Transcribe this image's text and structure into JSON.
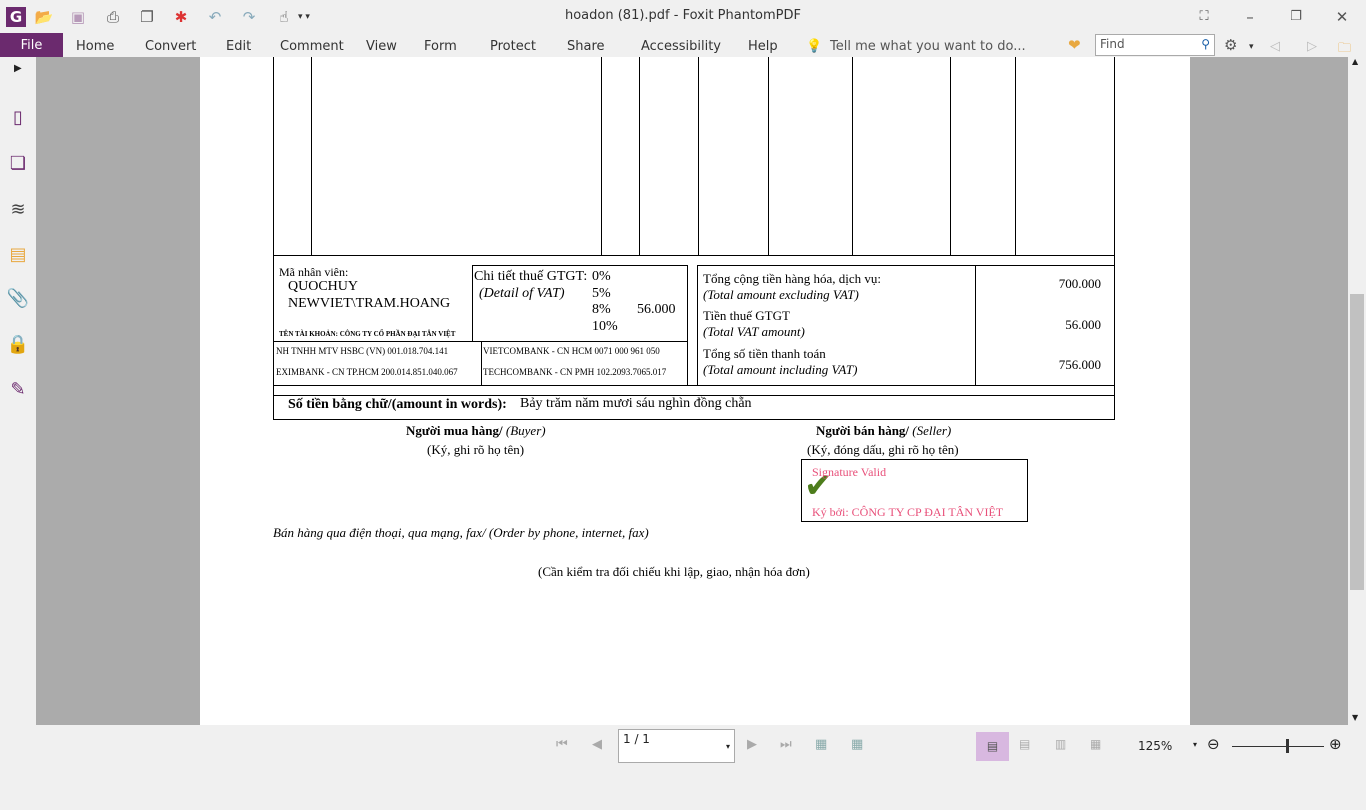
{
  "window": {
    "title": "hoadon (81).pdf - Foxit PhantomPDF"
  },
  "menu": {
    "file": "File",
    "tabs": [
      "Home",
      "Convert",
      "Edit",
      "Comment",
      "View",
      "Form",
      "Protect",
      "Share",
      "Accessibility",
      "Help"
    ],
    "tell_me": "Tell me what you want to do...",
    "find_placeholder": "Find"
  },
  "invoice": {
    "employee_label": "Mã nhân viên:",
    "employee_1": "QUOCHUY",
    "employee_2": "NEWVIET\\TRAM.HOANG",
    "account_name": "TÊN TÀI KHOẢN: CÔNG TY CỔ PHẦN ĐẠI TÂN VIỆT",
    "vat_label": "Chi tiết thuế GTGT:",
    "vat_label_en": "(Detail of VAT)",
    "vat_rates": [
      "0%",
      "5%",
      "8%",
      "10%"
    ],
    "vat_8_amount": "56.000",
    "banks": [
      "NH TNHH MTV HSBC (VN)  001.018.704.141",
      "EXIMBANK - CN TP.HCM  200.014.851.040.067",
      "VIETCOMBANK - CN HCM  0071 000 961 050",
      "TECHCOMBANK - CN PMH  102.2093.7065.017"
    ],
    "total_excl_label": "Tổng cộng tiền hàng hóa, dịch vụ:",
    "total_excl_label_en": "(Total amount excluding VAT)",
    "total_excl": "700.000",
    "vat_amount_label": "Tiền thuế GTGT",
    "vat_amount_label_en": "(Total VAT amount)",
    "vat_amount": "56.000",
    "total_incl_label": "Tổng số tiền thanh toán",
    "total_incl_label_en": "(Total amount including VAT)",
    "total_incl": "756.000",
    "words_label": "Số tiền bằng chữ/(amount in words):",
    "words": "Bảy trăm năm mươi sáu nghìn đồng chẵn",
    "buyer": "Người mua hàng/",
    "buyer_en": "(Buyer)",
    "buyer_sign": "(Ký, ghi rõ họ tên)",
    "seller": "Người bán hàng/",
    "seller_en": "(Seller)",
    "seller_sign": "(Ký, đóng dấu, ghi rõ họ tên)",
    "sig_valid": "Signature Valid",
    "sig_by": "Ký bởi: CÔNG TY CP ĐẠI TÂN VIỆT",
    "order_note": "Bán hàng qua điện thoại, qua mạng, fax/ (Order by phone, internet, fax)",
    "check_note": "(Cần kiểm tra đối chiếu khi lập, giao, nhận hóa đơn)"
  },
  "status": {
    "page": "1 / 1",
    "zoom": "125%",
    "zoom_level_percent": 60
  },
  "colors": {
    "brand": "#6b2a6e",
    "signature": "#e8507a"
  }
}
